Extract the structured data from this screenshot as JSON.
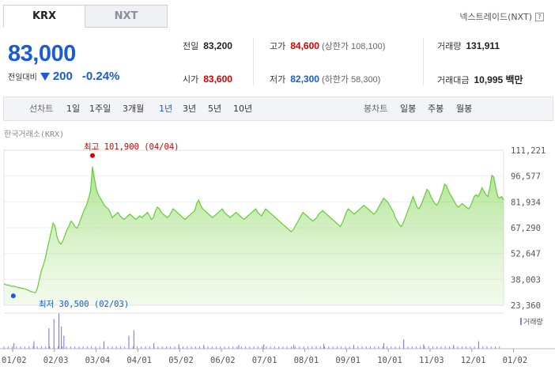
{
  "tabs": [
    {
      "label": "KRX",
      "active": true
    },
    {
      "label": "NXT",
      "active": false
    }
  ],
  "nxt_link": "넥스트레이드(NXT)",
  "price": "83,000",
  "change": {
    "label": "전일대비",
    "direction": "down",
    "value": "200",
    "percent": "-0.24%"
  },
  "summary": {
    "prev_close": {
      "label": "전일",
      "value": "83,200"
    },
    "high": {
      "label": "고가",
      "value": "84,600",
      "sub": "(상한가 108,100)"
    },
    "volume": {
      "label": "거래량",
      "value": "131,911"
    },
    "open": {
      "label": "시가",
      "value": "83,600"
    },
    "low": {
      "label": "저가",
      "value": "82,300",
      "sub": "(하한가 58,300)"
    },
    "amount": {
      "label": "거래대금",
      "value": "10,995 백만"
    }
  },
  "period": {
    "line_label": "선차트",
    "line_options": [
      "1일",
      "1주일",
      "3개월",
      "1년",
      "3년",
      "5년",
      "10년"
    ],
    "active": "1년",
    "candle_label": "봉차트",
    "candle_options": [
      "일봉",
      "주봉",
      "월봉"
    ]
  },
  "colors": {
    "accent": "#1a5bd6",
    "up": "#d60000",
    "line": "#66cc33",
    "fill": "#cdeeb3"
  },
  "chart_data": {
    "type": "area",
    "source_label": "한국거래소(KRX)",
    "y_ticks": [
      "111,221",
      "96,577",
      "81,934",
      "67,290",
      "52,647",
      "38,003",
      "23,360"
    ],
    "ylim": [
      23360,
      111221
    ],
    "x_ticks": [
      "01/02",
      "02/03",
      "03/04",
      "04/01",
      "05/02",
      "06/02",
      "07/01",
      "08/01",
      "09/01",
      "10/01",
      "11/03",
      "12/01",
      "01/02"
    ],
    "max_label": "최고 101,900 (04/04)",
    "min_label": "최저 30,500 (02/03)",
    "volume_label": "거래량",
    "values": [
      35500,
      35000,
      34800,
      34500,
      34000,
      34200,
      33800,
      33500,
      33200,
      33000,
      32800,
      32500,
      32000,
      31500,
      31000,
      30800,
      30500,
      33000,
      38000,
      43000,
      46000,
      50000,
      55000,
      60000,
      65000,
      70000,
      68000,
      62000,
      59000,
      58000,
      60000,
      63000,
      66000,
      68000,
      71000,
      70000,
      68000,
      67000,
      69000,
      72000,
      75000,
      78000,
      80000,
      84000,
      88000,
      101900,
      95000,
      89000,
      86000,
      84000,
      82000,
      80000,
      79000,
      78000,
      76000,
      73000,
      74000,
      75000,
      76000,
      74000,
      73000,
      72000,
      73000,
      74000,
      75000,
      74000,
      73000,
      72000,
      73000,
      74000,
      73000,
      74000,
      75000,
      76000,
      74000,
      72000,
      73000,
      77000,
      79000,
      78000,
      76000,
      75000,
      74000,
      73000,
      74000,
      76000,
      78000,
      77000,
      76000,
      75000,
      74000,
      73000,
      72000,
      73000,
      74000,
      75000,
      76000,
      77000,
      81000,
      83000,
      80000,
      78000,
      77000,
      76000,
      75000,
      74000,
      73000,
      74000,
      75000,
      76000,
      77000,
      78000,
      76000,
      75000,
      74000,
      73000,
      74000,
      75000,
      76000,
      75000,
      74000,
      73000,
      72000,
      73000,
      74000,
      75000,
      76000,
      77000,
      78000,
      76000,
      75000,
      74000,
      76000,
      78000,
      77000,
      76000,
      75000,
      74000,
      73000,
      72000,
      71000,
      70000,
      69000,
      68000,
      67000,
      66000,
      65000,
      66000,
      68000,
      70000,
      72000,
      74000,
      76000,
      75000,
      74000,
      73000,
      72000,
      71000,
      72000,
      73000,
      75000,
      76000,
      77000,
      76000,
      75000,
      74000,
      73000,
      72000,
      71000,
      70000,
      69000,
      68000,
      70000,
      73000,
      76000,
      78000,
      77000,
      76000,
      75000,
      76000,
      77000,
      78000,
      79000,
      80000,
      79000,
      78000,
      77000,
      76000,
      75000,
      76000,
      78000,
      80000,
      82000,
      84000,
      83000,
      82000,
      80000,
      78000,
      76000,
      73000,
      71000,
      69000,
      68000,
      70000,
      73000,
      76000,
      79000,
      82000,
      85000,
      82000,
      79000,
      78000,
      80000,
      83000,
      86000,
      89000,
      88000,
      85000,
      83000,
      81000,
      80000,
      82000,
      85000,
      88000,
      92000,
      91000,
      88000,
      86000,
      84000,
      82000,
      80000,
      79000,
      80000,
      81000,
      80000,
      79000,
      78000,
      79000,
      82000,
      85000,
      86000,
      85000,
      87000,
      90000,
      88000,
      86000,
      85000,
      90000,
      97000,
      96000,
      90000,
      85000,
      84000,
      85000,
      83000
    ],
    "volume_spikes": [
      [
        0.02,
        0.15
      ],
      [
        0.06,
        0.2
      ],
      [
        0.09,
        0.55
      ],
      [
        0.1,
        0.8
      ],
      [
        0.11,
        0.95
      ],
      [
        0.115,
        0.6
      ],
      [
        0.12,
        0.35
      ],
      [
        0.2,
        0.2
      ],
      [
        0.25,
        0.35
      ],
      [
        0.26,
        0.5
      ],
      [
        0.3,
        0.15
      ],
      [
        0.35,
        0.12
      ],
      [
        0.4,
        0.1
      ],
      [
        0.47,
        0.1
      ],
      [
        0.52,
        0.12
      ],
      [
        0.58,
        0.1
      ],
      [
        0.64,
        0.12
      ],
      [
        0.7,
        0.1
      ],
      [
        0.76,
        0.15
      ],
      [
        0.8,
        0.25
      ],
      [
        0.84,
        0.12
      ],
      [
        0.9,
        0.1
      ],
      [
        0.95,
        0.2
      ]
    ]
  }
}
